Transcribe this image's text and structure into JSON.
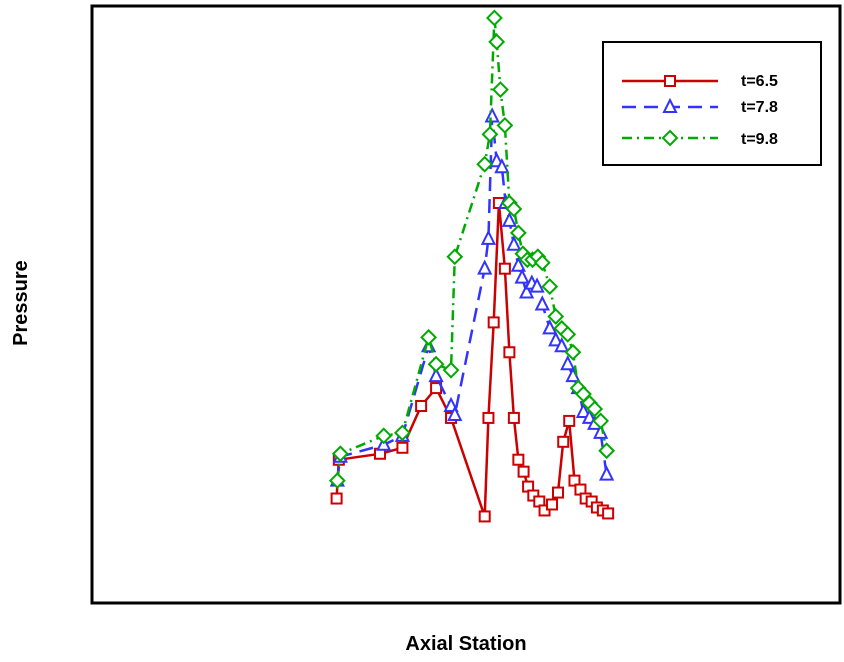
{
  "chart_data": {
    "type": "line",
    "xlabel": "Axial Station",
    "ylabel": "Pressure",
    "xlim": [
      0,
      100
    ],
    "ylim": [
      0,
      100
    ],
    "grid": false,
    "legend": {
      "position": "top-right"
    },
    "axis_ticks": false,
    "series": [
      {
        "name": "t=6.5",
        "color": "#cc0000",
        "dash": "solid",
        "marker": "square",
        "x": [
          32.7,
          33.0,
          38.5,
          41.5,
          44.0,
          46.0,
          48.0,
          52.5,
          53.0,
          53.7,
          54.4,
          55.2,
          55.8,
          56.4,
          57.0,
          57.7,
          58.3,
          59.0,
          59.8,
          60.5,
          61.5,
          62.3,
          63.0,
          63.8,
          64.5,
          65.3,
          66.0,
          66.8,
          67.5,
          68.3,
          69.0
        ],
        "y": [
          17.5,
          24.0,
          25.0,
          26.0,
          33.0,
          36.0,
          31.0,
          14.5,
          31.0,
          47.0,
          67.0,
          56.0,
          42.0,
          31.0,
          24.0,
          22.0,
          19.5,
          18.0,
          17.0,
          15.5,
          16.5,
          18.5,
          27.0,
          30.5,
          20.5,
          19.0,
          17.5,
          17.0,
          16.0,
          15.5,
          15.0
        ]
      },
      {
        "name": "t=7.8",
        "color": "#3333ff",
        "dash": "dash",
        "marker": "triangle",
        "x": [
          32.8,
          33.2,
          39.0,
          41.5,
          45.0,
          46.0,
          48.0,
          48.5,
          52.5,
          53.0,
          53.5,
          54.1,
          54.8,
          55.3,
          55.8,
          56.4,
          57.0,
          57.5,
          58.1,
          58.8,
          59.5,
          60.2,
          61.2,
          62.0,
          62.8,
          63.6,
          64.3,
          65.0,
          65.7,
          66.5,
          67.2,
          68.0,
          68.8
        ],
        "y": [
          20.5,
          24.5,
          26.5,
          28.0,
          43.0,
          38.0,
          33.0,
          31.5,
          56.0,
          61.0,
          81.5,
          74.0,
          73.0,
          67.0,
          64.0,
          60.0,
          56.5,
          54.5,
          52.0,
          53.5,
          53.0,
          50.0,
          46.0,
          44.0,
          43.0,
          40.0,
          38.0,
          36.0,
          32.0,
          31.0,
          30.0,
          28.5,
          21.5
        ]
      },
      {
        "name": "t=9.8",
        "color": "#00aa00",
        "dash": "dashdot",
        "marker": "diamond",
        "x": [
          32.8,
          33.2,
          39.0,
          41.5,
          45.0,
          46.0,
          48.0,
          48.5,
          52.5,
          53.2,
          53.8,
          54.1,
          54.6,
          55.2,
          55.8,
          56.4,
          57.0,
          57.6,
          58.2,
          58.9,
          59.6,
          60.2,
          61.2,
          62.0,
          62.8,
          63.6,
          64.3,
          65.0,
          65.7,
          66.5,
          67.2,
          68.0,
          68.8
        ],
        "y": [
          20.5,
          25.0,
          28.0,
          28.5,
          44.5,
          40.0,
          39.0,
          58.0,
          73.5,
          78.5,
          98.0,
          94.0,
          86.0,
          80.0,
          67.0,
          66.0,
          62.0,
          58.5,
          57.5,
          57.5,
          58.0,
          57.0,
          53.0,
          48.0,
          46.0,
          45.0,
          42.0,
          36.0,
          35.0,
          33.5,
          32.5,
          30.5,
          25.5
        ]
      }
    ]
  }
}
